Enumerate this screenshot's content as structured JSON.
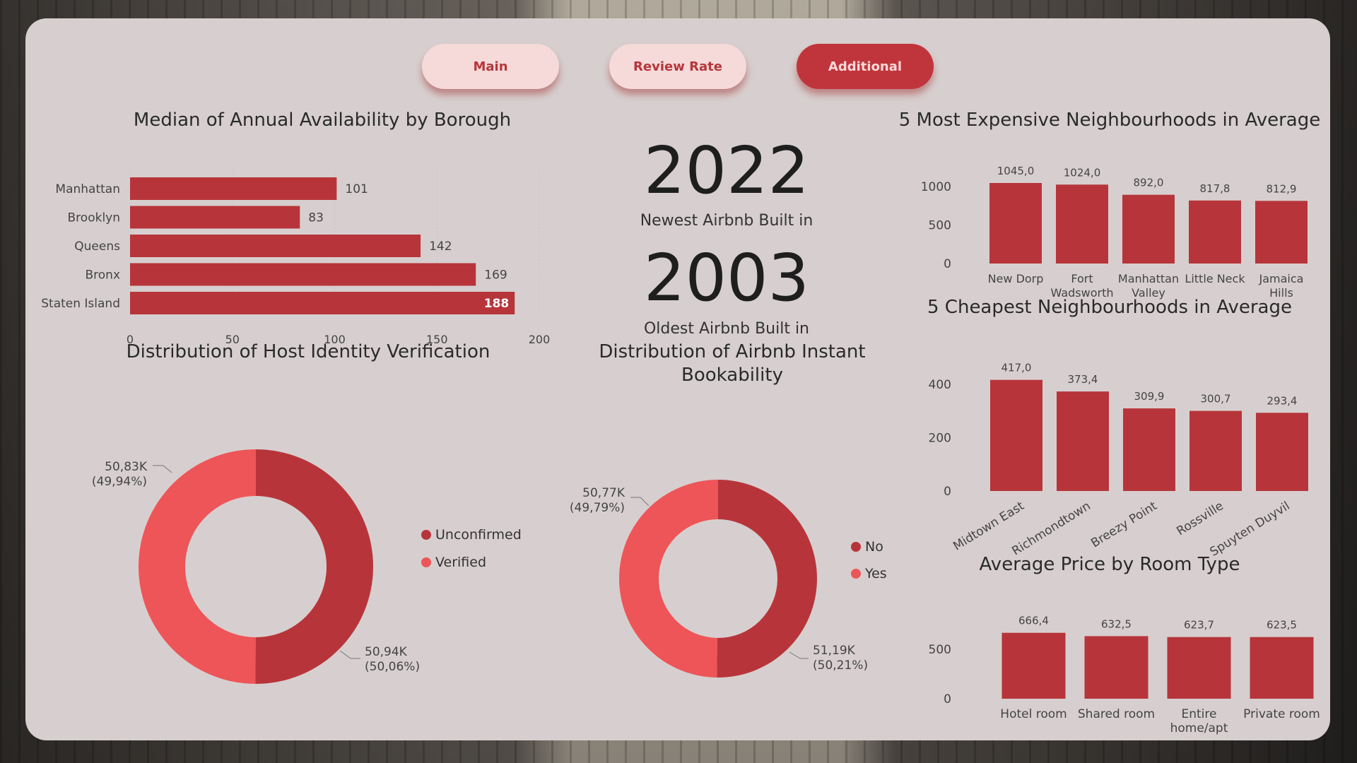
{
  "nav": {
    "main": "Main",
    "review": "Review Rate",
    "additional": "Additional"
  },
  "colors": {
    "dark_red": "#b7353a",
    "light_red": "#ee5558",
    "accent": "#c0353b"
  },
  "kpis": {
    "newest_value": "2022",
    "newest_label": "Newest Airbnb Built in",
    "oldest_value": "2003",
    "oldest_label": "Oldest Airbnb Built in"
  },
  "legends": {
    "host": [
      "Unconfirmed",
      "Verified"
    ],
    "instant": [
      "No",
      "Yes"
    ]
  },
  "chart_data": [
    {
      "id": "availability",
      "type": "bar",
      "orientation": "horizontal",
      "title": "Median of Annual Availability by Borough",
      "categories": [
        "Manhattan",
        "Brooklyn",
        "Queens",
        "Bronx",
        "Staten Island"
      ],
      "values": [
        101,
        83,
        142,
        169,
        188
      ],
      "data_labels": [
        "101",
        "83",
        "142",
        "169",
        "188"
      ],
      "xticks": [
        "0",
        "50",
        "100",
        "150",
        "200"
      ],
      "xlim": [
        0,
        200
      ]
    },
    {
      "id": "expensive",
      "type": "bar",
      "title": "5 Most Expensive Neighbourhoods in Average",
      "categories": [
        "New Dorp",
        "Fort Wadsworth",
        "Manhattan Valley",
        "Little Neck",
        "Jamaica Hills"
      ],
      "category_lines": [
        [
          "New Dorp"
        ],
        [
          "Fort",
          "Wadsworth"
        ],
        [
          "Manhattan",
          "Valley"
        ],
        [
          "Little Neck"
        ],
        [
          "Jamaica",
          "Hills"
        ]
      ],
      "values": [
        1045.0,
        1024.0,
        892.0,
        817.8,
        812.9
      ],
      "data_labels": [
        "1045,0",
        "1024,0",
        "892,0",
        "817,8",
        "812,9"
      ],
      "yticks": [
        "0",
        "500",
        "1000"
      ],
      "ylim": [
        0,
        1100
      ]
    },
    {
      "id": "cheapest",
      "type": "bar",
      "title": "5 Cheapest Neighbourhoods in Average",
      "categories": [
        "Midtown East",
        "Richmondtown",
        "Breezy Point",
        "Rossville",
        "Spuyten Duyvil"
      ],
      "values": [
        417.0,
        373.4,
        309.9,
        300.7,
        293.4
      ],
      "data_labels": [
        "417,0",
        "373,4",
        "309,9",
        "300,7",
        "293,4"
      ],
      "yticks": [
        "0",
        "200",
        "400"
      ],
      "ylim": [
        0,
        440
      ]
    },
    {
      "id": "roomtype",
      "type": "bar",
      "title": "Average Price by Room Type",
      "categories": [
        "Hotel room",
        "Shared room",
        "Entire home/apt",
        "Private room"
      ],
      "category_lines": [
        [
          "Hotel room"
        ],
        [
          "Shared room"
        ],
        [
          "Entire",
          "home/apt"
        ],
        [
          "Private room"
        ]
      ],
      "values": [
        666.4,
        632.5,
        623.7,
        623.5
      ],
      "data_labels": [
        "666,4",
        "632,5",
        "623,7",
        "623,5"
      ],
      "yticks": [
        "0",
        "500"
      ],
      "ylim": [
        0,
        700
      ]
    },
    {
      "id": "host",
      "type": "pie",
      "donut": true,
      "title": "Distribution of Host Identity Verification",
      "categories": [
        "Unconfirmed",
        "Verified"
      ],
      "values": [
        50940,
        50830
      ],
      "data_labels": [
        [
          "50,94K",
          "(50,06%)"
        ],
        [
          "50,83K",
          "(49,94%)"
        ]
      ]
    },
    {
      "id": "instant",
      "type": "pie",
      "donut": true,
      "title": "Distribution of Airbnb Instant Bookability",
      "title_lines": [
        "Distribution of Airbnb Instant",
        "Bookability"
      ],
      "categories": [
        "No",
        "Yes"
      ],
      "values": [
        51190,
        50770
      ],
      "data_labels": [
        [
          "51,19K",
          "(50,21%)"
        ],
        [
          "50,77K",
          "(49,79%)"
        ]
      ]
    }
  ]
}
